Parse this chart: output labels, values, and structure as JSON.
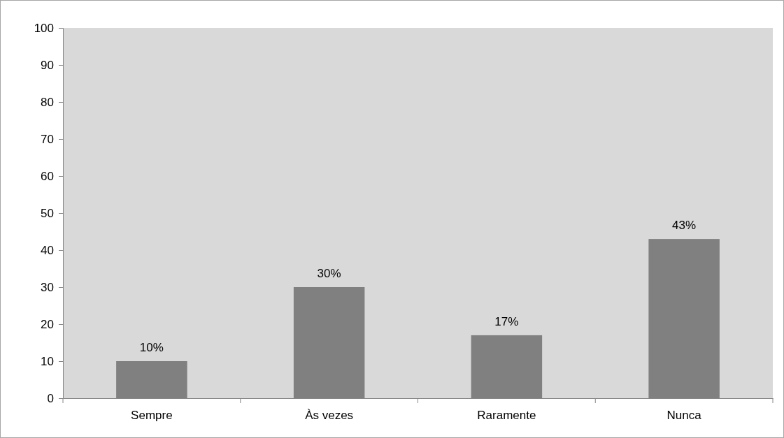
{
  "chart_data": {
    "type": "bar",
    "categories": [
      "Sempre",
      "Às vezes",
      "Raramente",
      "Nunca"
    ],
    "values": [
      10,
      30,
      17,
      43
    ],
    "color": "#808080",
    "value_labels": [
      "10%",
      "30%",
      "17%",
      "43%"
    ],
    "ylim": [
      0,
      100
    ],
    "yticks": [
      0,
      10,
      20,
      30,
      40,
      50,
      60,
      70,
      80,
      90,
      100
    ],
    "grid": false
  }
}
